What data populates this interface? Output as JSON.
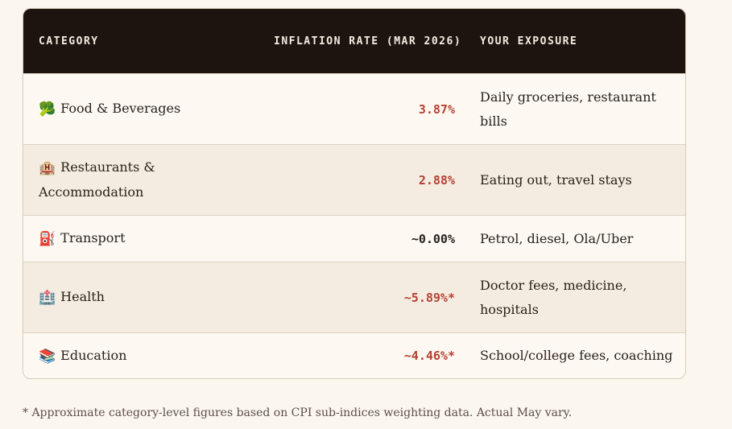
{
  "table": {
    "headers": {
      "category": "CATEGORY",
      "rate": "INFLATION RATE (MAR 2026)",
      "exposure": "YOUR EXPOSURE"
    },
    "rows": [
      {
        "icon": "broccoli-icon",
        "icon_glyph": "🥦",
        "icon_color": "#3f7d2a",
        "category": "Food & Beverages",
        "rate": "3.87%",
        "rate_color": "#b54134",
        "exposure": "Daily groceries, restaurant bills"
      },
      {
        "icon": "hotel-icon",
        "icon_glyph": "🏨",
        "icon_color": "#c0392b",
        "category": "Restaurants & Accommodation",
        "rate": "2.88%",
        "rate_color": "#b54134",
        "exposure": "Eating out, travel stays"
      },
      {
        "icon": "fuel-pump-icon",
        "icon_glyph": "⛽",
        "icon_color": "#c0392b",
        "category": "Transport",
        "rate": "~0.00%",
        "rate_color": "#2a211b",
        "exposure": "Petrol, diesel, Ola/Uber"
      },
      {
        "icon": "hospital-icon",
        "icon_glyph": "🏥",
        "icon_color": "#c0392b",
        "category": "Health",
        "rate": "~5.89%*",
        "rate_color": "#b54134",
        "exposure": "Doctor fees, medicine, hospitals"
      },
      {
        "icon": "books-icon",
        "icon_glyph": "📚",
        "icon_color": "#3f7d2a",
        "category": "Education",
        "rate": "~4.46%*",
        "rate_color": "#b54134",
        "exposure": "School/college fees, coaching"
      }
    ]
  },
  "footnote": "* Approximate category-level figures based on CPI sub-indices weighting data. Actual May vary."
}
